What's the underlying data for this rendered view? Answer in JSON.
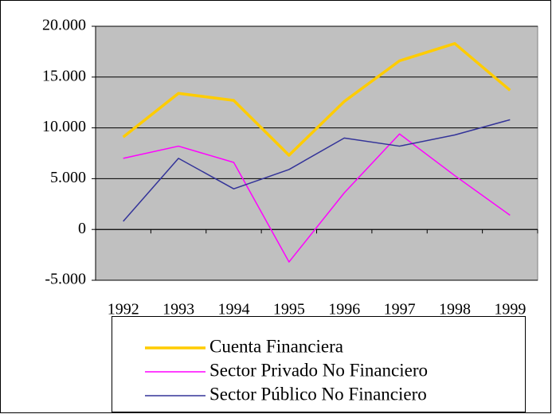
{
  "chart_data": {
    "type": "line",
    "categories": [
      "1992",
      "1993",
      "1994",
      "1995",
      "1996",
      "1997",
      "1998",
      "1999"
    ],
    "series": [
      {
        "name": "Cuenta Financiera",
        "color": "#ffcc00",
        "values": [
          9100,
          13400,
          12700,
          7300,
          12600,
          16600,
          18300,
          13700
        ]
      },
      {
        "name": "Sector Privado No Financiero",
        "color": "#ff00ff",
        "values": [
          7000,
          8200,
          6600,
          -3200,
          3600,
          9400,
          5300,
          1400
        ]
      },
      {
        "name": "Sector Público No Financiero",
        "color": "#333399",
        "values": [
          800,
          7000,
          4000,
          5900,
          9000,
          8200,
          9300,
          10800
        ]
      }
    ],
    "ylim": [
      -5000,
      20000
    ],
    "yticks": [
      {
        "value": -5000,
        "label": "-5.000"
      },
      0,
      {
        "value": 5000,
        "label": "5.000"
      },
      {
        "value": 10000,
        "label": "10.000"
      },
      {
        "value": 15000,
        "label": "15.000"
      },
      {
        "value": 20000,
        "label": "20.000"
      }
    ],
    "grid": true,
    "legend": "bottom"
  }
}
